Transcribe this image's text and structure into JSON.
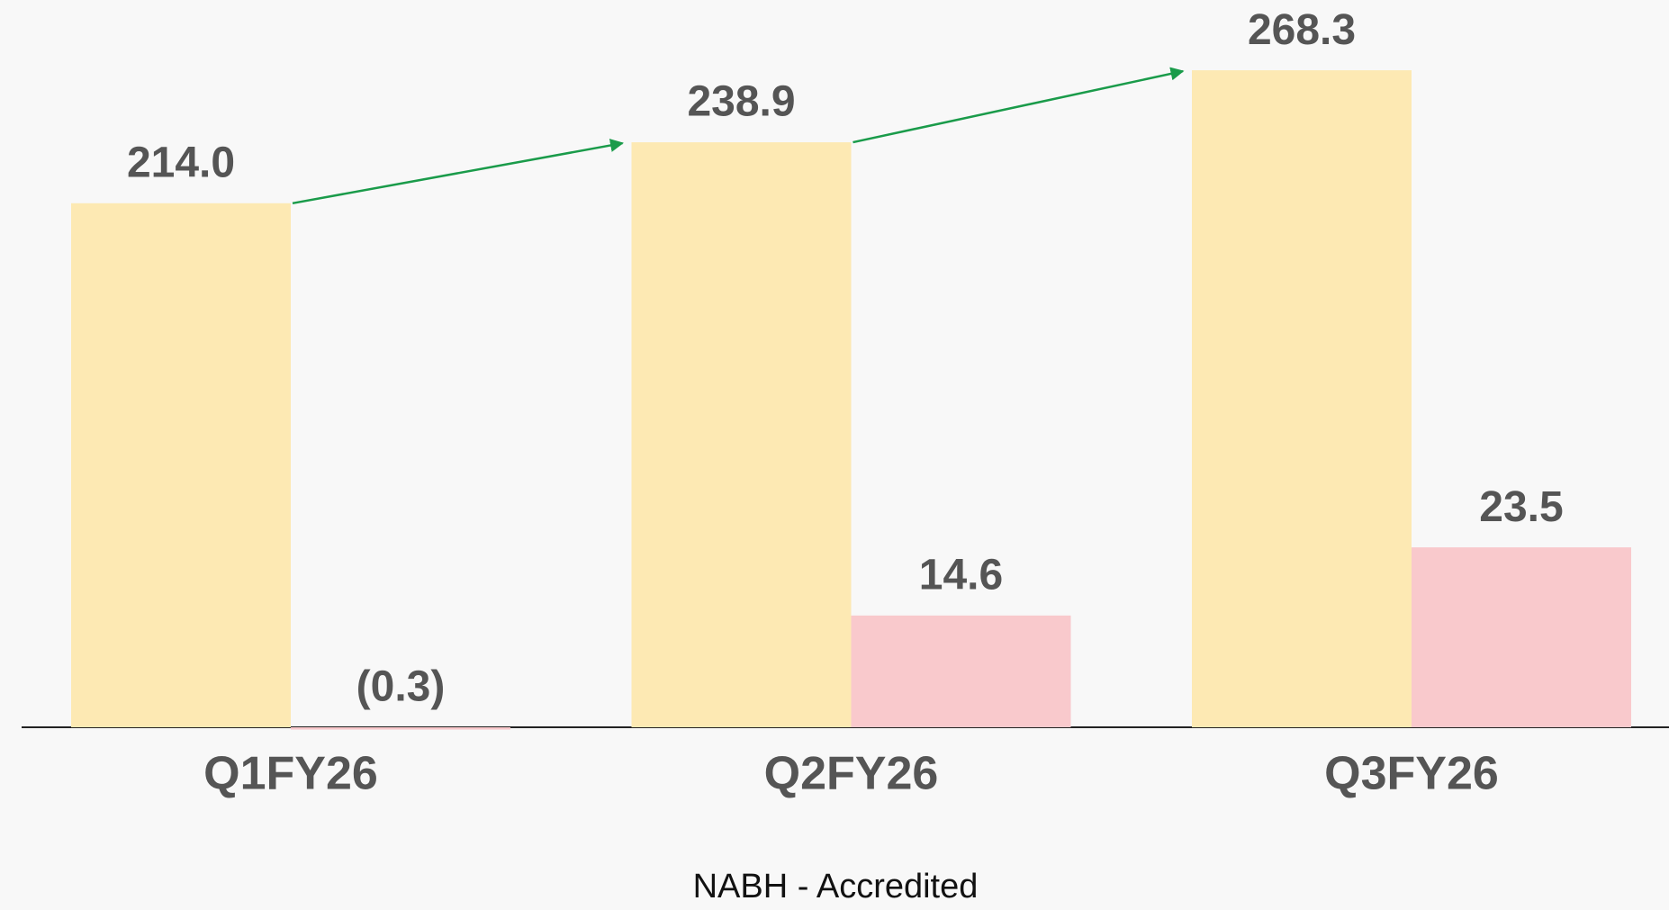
{
  "chart_data": {
    "type": "bar",
    "categories": [
      "Q1FY26",
      "Q2FY26",
      "Q3FY26"
    ],
    "series": [
      {
        "color": "#fde9b3",
        "values": [
          214.0,
          238.9,
          268.3
        ],
        "value_labels": [
          "214.0",
          "238.9",
          "268.3"
        ]
      },
      {
        "color": "#f9c9cc",
        "axis": "y2",
        "values": [
          -0.3,
          14.6,
          23.5
        ],
        "value_labels": [
          "(0.3)",
          "14.6",
          "23.5"
        ]
      }
    ],
    "ylim": [
      0,
      297
    ],
    "y2lim": [
      0,
      95
    ],
    "grid": false,
    "footer": "NABH - Accredited"
  }
}
